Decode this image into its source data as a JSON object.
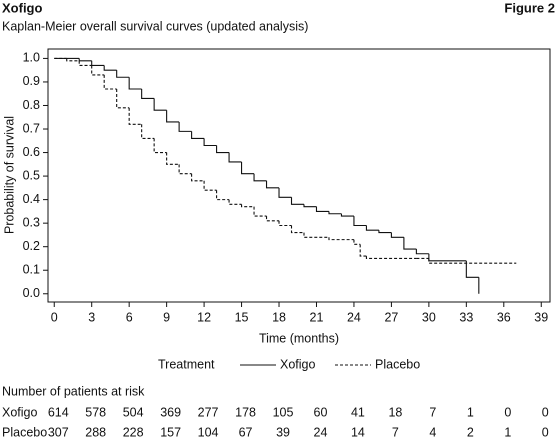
{
  "chart_data": {
    "type": "step",
    "title": "Xofigo",
    "figure_label": "Figure 2",
    "subtitle": "Kaplan-Meier overall survival curves (updated analysis)",
    "x_label": "Time  (months)",
    "y_label": "Probability of survival",
    "legend_title": "Treatment",
    "xlim": [
      -0.5,
      39.7
    ],
    "ylim": [
      -0.035,
      1.04
    ],
    "xticks": [
      0,
      3,
      6,
      9,
      12,
      15,
      18,
      21,
      24,
      27,
      30,
      33,
      36,
      39
    ],
    "yticks": [
      {
        "value": 0,
        "label": "0.0"
      },
      0.1,
      0.2,
      0.3,
      0.4,
      0.5,
      0.6,
      0.7,
      0.8,
      0.9,
      {
        "value": 1,
        "label": "1.0"
      }
    ],
    "series": [
      {
        "name": "Xofigo",
        "color": "#111111",
        "line_style": "solid",
        "x": [
          0,
          1,
          2,
          3,
          4,
          5,
          6,
          7,
          8,
          9,
          10,
          11,
          12,
          13,
          14,
          15,
          16,
          17,
          18,
          19,
          20,
          21,
          22,
          23,
          24,
          25,
          26,
          27,
          28,
          29,
          30,
          33,
          34
        ],
        "values": [
          1.0,
          1.0,
          0.99,
          0.97,
          0.95,
          0.92,
          0.87,
          0.83,
          0.78,
          0.73,
          0.69,
          0.66,
          0.63,
          0.6,
          0.56,
          0.51,
          0.48,
          0.45,
          0.41,
          0.38,
          0.37,
          0.35,
          0.34,
          0.33,
          0.29,
          0.27,
          0.26,
          0.24,
          0.19,
          0.17,
          0.14,
          0.07,
          0.0
        ],
        "at_risk": [
          614,
          578,
          504,
          369,
          277,
          178,
          105,
          60,
          41,
          18,
          7,
          1,
          0,
          0
        ]
      },
      {
        "name": "Placebo",
        "color": "#111111",
        "line_style": "dashed",
        "x": [
          0,
          1,
          2,
          3,
          4,
          5,
          6,
          7,
          8,
          9,
          10,
          11,
          12,
          13,
          14,
          15,
          16,
          17,
          18,
          19,
          20,
          22,
          24,
          24.5,
          25,
          29,
          30,
          37
        ],
        "values": [
          1.0,
          0.99,
          0.97,
          0.93,
          0.87,
          0.79,
          0.72,
          0.66,
          0.6,
          0.55,
          0.51,
          0.48,
          0.44,
          0.4,
          0.38,
          0.37,
          0.33,
          0.31,
          0.29,
          0.26,
          0.24,
          0.23,
          0.21,
          0.16,
          0.15,
          0.15,
          0.13,
          0.13
        ],
        "at_risk": [
          307,
          288,
          228,
          157,
          104,
          67,
          39,
          24,
          14,
          7,
          4,
          2,
          1,
          0
        ]
      }
    ],
    "at_risk_title": "Number of patients at risk"
  }
}
